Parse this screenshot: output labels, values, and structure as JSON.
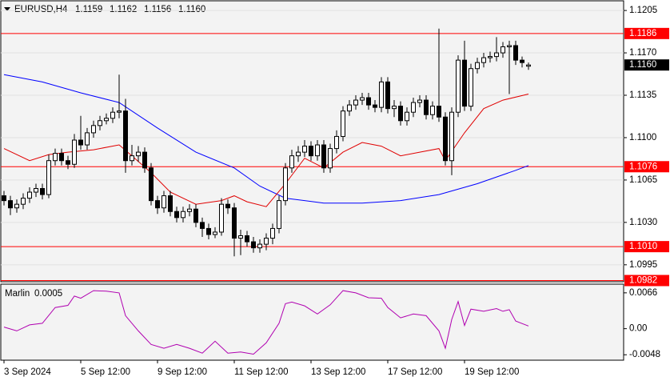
{
  "chart_data": {
    "type": "candlestick",
    "title": "EURUSD,H4",
    "quote": [
      "1.1159",
      "1.1162",
      "1.1156",
      "1.1160"
    ],
    "categories": [
      "3 Sep 2024",
      null,
      null,
      null,
      null,
      null,
      null,
      null,
      null,
      null,
      null,
      null,
      "5 Sep 12:00",
      null,
      null,
      null,
      null,
      null,
      null,
      null,
      null,
      null,
      null,
      null,
      "9 Sep 12:00",
      null,
      null,
      null,
      null,
      null,
      null,
      null,
      null,
      null,
      null,
      null,
      "11 Sep 12:00",
      null,
      null,
      null,
      null,
      null,
      null,
      null,
      null,
      null,
      null,
      null,
      "13 Sep 12:00",
      null,
      null,
      null,
      null,
      null,
      null,
      null,
      null,
      null,
      null,
      null,
      "17 Sep 12:00",
      null,
      null,
      null,
      null,
      null,
      null,
      null,
      null,
      null,
      null,
      null,
      "19 Sep 12:00",
      null,
      null,
      null,
      null,
      null,
      null,
      null,
      null,
      null,
      null
    ],
    "open": [
      1.1052,
      1.1048,
      1.1042,
      1.1045,
      1.105,
      1.1055,
      1.1058,
      1.1053,
      1.1081,
      1.1087,
      1.1081,
      1.1078,
      1.1098,
      1.1094,
      1.1104,
      1.111,
      1.1114,
      1.1116,
      1.1121,
      1.1122,
      1.1081,
      1.1085,
      1.1088,
      1.1075,
      1.1048,
      1.1042,
      1.1052,
      1.1039,
      1.1034,
      1.1039,
      1.1041,
      1.103,
      1.1025,
      1.102,
      1.1022,
      1.1045,
      1.1042,
      1.1017,
      1.1019,
      1.1014,
      1.1009,
      1.1012,
      1.1017,
      1.1025,
      1.1048,
      1.1075,
      1.1085,
      1.1088,
      1.1093,
      1.1085,
      1.1094,
      1.1075,
      1.1091,
      1.1101,
      1.1122,
      1.1127,
      1.1131,
      1.1133,
      1.1127,
      1.1125,
      1.1146,
      1.1124,
      1.1126,
      1.1114,
      1.1121,
      1.1129,
      1.1131,
      1.1119,
      1.1126,
      1.1117,
      1.1081,
      1.1121,
      1.1164,
      1.1126,
      1.1157,
      1.1162,
      1.1166,
      1.1167,
      1.117,
      1.1175,
      1.1176,
      1.1164,
      1.1159
    ],
    "high": [
      1.1056,
      1.1052,
      1.1049,
      1.1054,
      1.1059,
      1.1062,
      1.1062,
      1.1086,
      1.1091,
      1.1091,
      1.1085,
      1.1103,
      1.1118,
      1.1108,
      1.1114,
      1.1118,
      1.112,
      1.1125,
      1.1152,
      1.1132,
      1.1094,
      1.1093,
      1.1092,
      1.1079,
      1.1052,
      1.1056,
      1.1056,
      1.1043,
      1.1043,
      1.1045,
      1.1045,
      1.1034,
      1.1029,
      1.1026,
      1.105,
      1.1049,
      1.1046,
      1.1024,
      1.1023,
      1.1018,
      1.1016,
      1.1021,
      1.1029,
      1.1052,
      1.1079,
      1.109,
      1.1093,
      1.1098,
      1.1097,
      1.1098,
      1.1098,
      1.1095,
      1.1106,
      1.1126,
      1.1131,
      1.1135,
      1.1137,
      1.1137,
      1.1131,
      1.115,
      1.115,
      1.1131,
      1.113,
      1.1125,
      1.1133,
      1.1135,
      1.1135,
      1.113,
      1.119,
      1.1121,
      1.1125,
      1.1168,
      1.118,
      1.1161,
      1.1166,
      1.117,
      1.1171,
      1.1183,
      1.1179,
      1.118,
      1.118,
      1.1167,
      1.1162
    ],
    "low": [
      1.1044,
      1.1036,
      1.1038,
      1.1041,
      1.1046,
      1.1051,
      1.1049,
      1.105,
      1.1077,
      1.1077,
      1.1074,
      1.1075,
      1.109,
      1.109,
      1.11,
      1.1106,
      1.1111,
      1.1112,
      1.1116,
      1.1071,
      1.1077,
      1.108,
      1.1071,
      1.1044,
      1.1037,
      1.1038,
      1.1035,
      1.103,
      1.103,
      1.1035,
      1.1026,
      1.1018,
      1.1016,
      1.1017,
      1.1019,
      1.1037,
      1.1002,
      1.1003,
      1.101,
      1.1005,
      1.1005,
      1.1007,
      1.1012,
      1.1021,
      1.1044,
      1.1071,
      1.108,
      1.1084,
      1.1081,
      1.1081,
      1.1071,
      1.1071,
      1.1087,
      1.1097,
      1.1118,
      1.1123,
      1.1127,
      1.1123,
      1.1121,
      1.1121,
      1.112,
      1.1117,
      1.111,
      1.111,
      1.1117,
      1.1125,
      1.1115,
      1.1115,
      1.1113,
      1.1077,
      1.1069,
      1.1117,
      1.1122,
      1.1122,
      1.1153,
      1.1158,
      1.1162,
      1.1163,
      1.1166,
      1.1136,
      1.116,
      1.1158,
      1.1156
    ],
    "close": [
      1.1048,
      1.1042,
      1.1045,
      1.105,
      1.1055,
      1.1058,
      1.1053,
      1.1081,
      1.1087,
      1.1081,
      1.1078,
      1.1098,
      1.1094,
      1.1104,
      1.111,
      1.1114,
      1.1116,
      1.1121,
      1.1122,
      1.1081,
      1.1085,
      1.1088,
      1.1075,
      1.1048,
      1.1042,
      1.1052,
      1.1039,
      1.1034,
      1.1039,
      1.1041,
      1.103,
      1.1025,
      1.102,
      1.1022,
      1.1045,
      1.1042,
      1.1017,
      1.1019,
      1.1014,
      1.1009,
      1.1012,
      1.1017,
      1.1025,
      1.1048,
      1.1075,
      1.1085,
      1.1088,
      1.1093,
      1.1085,
      1.1094,
      1.1075,
      1.1091,
      1.1101,
      1.1122,
      1.1127,
      1.1131,
      1.1133,
      1.1127,
      1.1125,
      1.1146,
      1.1124,
      1.1126,
      1.1114,
      1.1121,
      1.1129,
      1.1131,
      1.1119,
      1.1126,
      1.1117,
      1.1081,
      1.1121,
      1.1164,
      1.1126,
      1.1157,
      1.1162,
      1.1166,
      1.1167,
      1.117,
      1.1175,
      1.1176,
      1.1164,
      1.1162,
      1.116
    ],
    "up_color": "#ffffff",
    "down_color": "#000000",
    "ylim": [
      1.0981,
      1.1213
    ],
    "yticks": [
      {
        "value": 1.1205,
        "label": "1.1205"
      },
      {
        "value": 1.117,
        "label": "1.1170"
      },
      {
        "value": 1.1135,
        "label": "1.1135"
      },
      {
        "value": 1.11,
        "label": "1.1100"
      },
      {
        "value": 1.1065,
        "label": "1.1065"
      },
      {
        "value": 1.103,
        "label": "1.1030"
      },
      {
        "value": 1.0995,
        "label": "1.0995"
      }
    ],
    "grid": true,
    "overlays": [
      {
        "color": "#0000ff",
        "x": [
          0,
          6,
          12,
          18,
          24,
          30,
          36,
          40,
          44,
          50,
          56,
          62,
          68,
          74,
          80,
          82
        ],
        "values": [
          1.1152,
          1.1146,
          1.1137,
          1.1129,
          1.1108,
          1.1088,
          1.1075,
          1.106,
          1.105,
          1.1046,
          1.1046,
          1.1048,
          1.1053,
          1.1062,
          1.1073,
          1.1077
        ]
      },
      {
        "color": "#e00000",
        "x": [
          0,
          4,
          7,
          10,
          14,
          18,
          20,
          23,
          26,
          30,
          34,
          36,
          38,
          41,
          44,
          47,
          50,
          53,
          56,
          59,
          62,
          65,
          68,
          69,
          72,
          75,
          78,
          82
        ],
        "values": [
          1.1091,
          1.1081,
          1.1086,
          1.1088,
          1.109,
          1.1094,
          1.1085,
          1.1071,
          1.1055,
          1.1045,
          1.1048,
          1.1052,
          1.1047,
          1.1043,
          1.1062,
          1.1083,
          1.1075,
          1.1088,
          1.1096,
          1.1093,
          1.1085,
          1.1088,
          1.1091,
          1.1081,
          1.1104,
          1.1124,
          1.1131,
          1.1136
        ]
      }
    ],
    "levels": [
      {
        "value": 1.1186,
        "label": "1.1186"
      },
      {
        "value": 1.1076,
        "label": "1.1076"
      },
      {
        "value": 1.101,
        "label": "1.1010"
      },
      {
        "value": 1.0982,
        "label": "1.0982"
      }
    ],
    "level_color": "#ff0000",
    "current_price": {
      "value": 1.116,
      "label": "1.1160"
    },
    "indicator": {
      "type": "line",
      "name": "Marlin",
      "last": {
        "value": 0.0005,
        "label": "0.0005"
      },
      "color": "#b000b0",
      "x": [
        0,
        2,
        4,
        6,
        8,
        10,
        11,
        12,
        14,
        16,
        18,
        19,
        21,
        23,
        25,
        27,
        29,
        31,
        33,
        35,
        37,
        39,
        41,
        43,
        44,
        45,
        47,
        49,
        51,
        53,
        55,
        57,
        59,
        60,
        62,
        64,
        66,
        68,
        69,
        70,
        71,
        72,
        73,
        75,
        77,
        78,
        79,
        80,
        82
      ],
      "values": [
        0.0003,
        -0.0004,
        0.0007,
        0.001,
        0.0039,
        0.0043,
        0.006,
        0.0056,
        0.007,
        0.0069,
        0.0066,
        0.0024,
        -0.0004,
        -0.0029,
        -0.0036,
        -0.0029,
        -0.0036,
        -0.0045,
        -0.0023,
        -0.0045,
        -0.0043,
        -0.0047,
        -0.0026,
        0.001,
        0.0046,
        0.0049,
        0.0042,
        0.0027,
        0.0044,
        0.007,
        0.0066,
        0.0057,
        0.0056,
        0.0039,
        0.002,
        0.0027,
        0.0024,
        -0.0004,
        -0.0036,
        0.0017,
        0.005,
        0.0006,
        0.0036,
        0.0032,
        0.0037,
        0.0032,
        0.0035,
        0.0014,
        0.0005
      ],
      "ylim": [
        -0.0058,
        0.0082
      ],
      "yticks": [
        {
          "value": 0.0066,
          "label": "0.0066"
        },
        {
          "value": 0,
          "label": "0.00"
        },
        {
          "value": -0.0048,
          "label": "-0.0048"
        }
      ]
    }
  }
}
